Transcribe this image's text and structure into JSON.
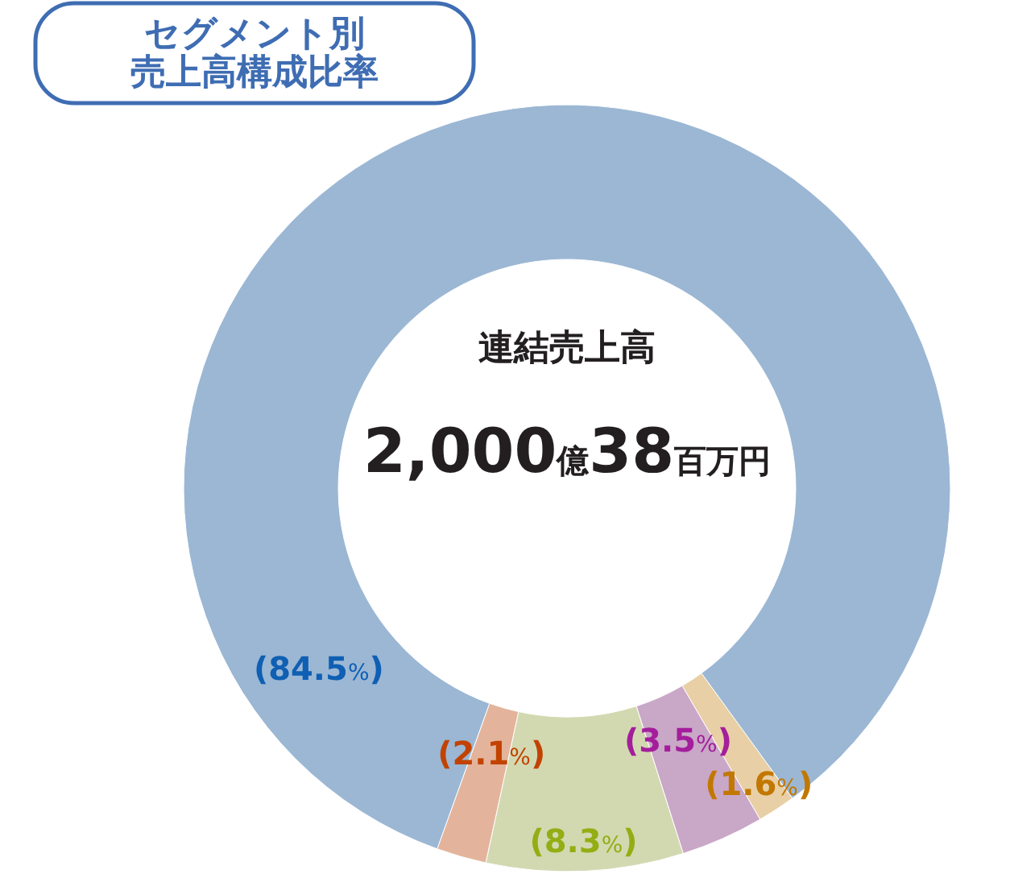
{
  "chart_data": {
    "type": "donut",
    "title": "セグメント別売上高構成比率",
    "categories": [
      null,
      null,
      null,
      null,
      null
    ],
    "values": [
      1.6,
      3.5,
      8.3,
      2.1,
      84.5
    ],
    "colors": [
      "#e8cfa6",
      "#c9a7c7",
      "#d2d9b1",
      "#e3b49b",
      "#9bb7d4"
    ],
    "value_labels": [
      "(1.6%)",
      "(3.5%)",
      "(8.3%)",
      "(2.1%)",
      "(84.5%)"
    ],
    "annotations": [
      "連結売上高",
      "2,000億38百万円"
    ],
    "legend": false
  }
}
